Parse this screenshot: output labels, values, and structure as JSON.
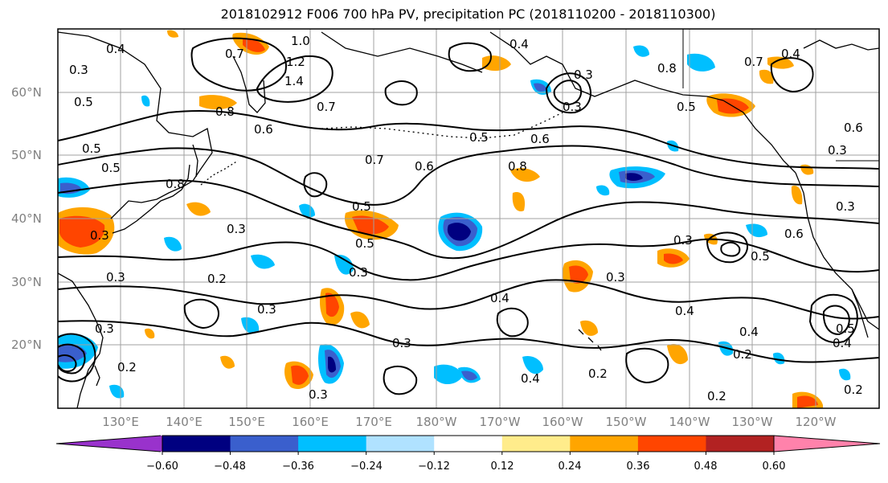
{
  "title": "2018102912 F006 700 hPa PV, precipitation PC (2018110200 - 2018110300)",
  "lat_labels": [
    "60°N",
    "50°N",
    "40°N",
    "30°N",
    "20°N"
  ],
  "lon_labels": [
    "130°E",
    "140°E",
    "150°E",
    "160°E",
    "170°E",
    "180°W",
    "170°W",
    "160°W",
    "150°W",
    "140°W",
    "130°W",
    "120°W"
  ],
  "contour_labels": [
    "0.3",
    "0.5",
    "0.4",
    "0.5",
    "0.5",
    "0.7",
    "1.0",
    "1.2",
    "1.4",
    "0.7",
    "0.8",
    "0.6",
    "0.5",
    "0.6",
    "0.7",
    "0.6",
    "0.8",
    "0.4",
    "0.3",
    "0.3",
    "0.8",
    "0.5",
    "0.7",
    "0.4",
    "0.6",
    "0.3",
    "0.8",
    "0.3",
    "0.5",
    "0.5",
    "0.3",
    "0.3",
    "0.2",
    "0.3",
    "0.3",
    "0.3",
    "0.2",
    "0.3",
    "0.4",
    "0.3",
    "0.3",
    "0.4",
    "0.4",
    "0.2",
    "0.2",
    "0.2",
    "0.4",
    "0.5",
    "0.4",
    "0.2",
    "0.3",
    "0.6",
    "0.5",
    "0.3"
  ],
  "colorbar": {
    "ticks": [
      "−0.60",
      "−0.48",
      "−0.36",
      "−0.24",
      "−0.12",
      "0.12",
      "0.24",
      "0.36",
      "0.48",
      "0.60"
    ],
    "colors": [
      "#9932cc",
      "#000080",
      "#3a5fcd",
      "#00bfff",
      "#b0e2ff",
      "#ffffff",
      "#ffec8b",
      "#ffa500",
      "#ff4500",
      "#b22222",
      "#ff82ab"
    ]
  },
  "colors": {
    "grid": "#a0a0a0",
    "coast": "#000000",
    "contour": "#000000"
  }
}
